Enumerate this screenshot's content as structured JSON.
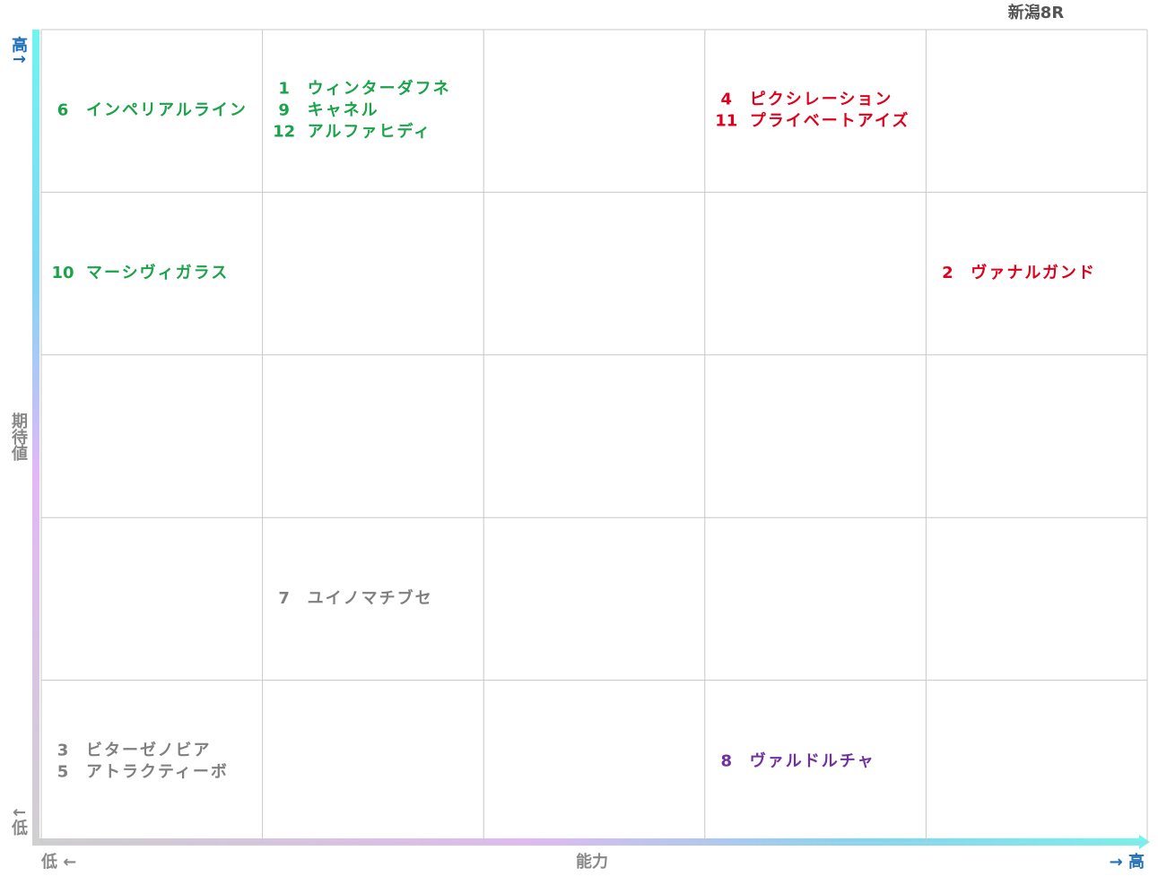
{
  "title": "新潟8R",
  "axes": {
    "y_high": "高↑",
    "y_label": "期待値",
    "y_low": "↓低",
    "x_low": "低 ←",
    "x_label": "能力",
    "x_high": "→ 高"
  },
  "groups": {
    "green": {
      "color": "#1aa34a"
    },
    "red": {
      "color": "#e0001b"
    },
    "gray": {
      "color": "#808080"
    },
    "purple": {
      "color": "#7030a0"
    }
  },
  "grid": {
    "rows": [
      [
        [
          {
            "number": 6,
            "name": "インペリアルライン",
            "group": "green"
          }
        ],
        [
          {
            "number": 1,
            "name": "ウィンターダフネ",
            "group": "green"
          },
          {
            "number": 9,
            "name": "キャネル",
            "group": "green"
          },
          {
            "number": 12,
            "name": "アルファヒディ",
            "group": "green"
          }
        ],
        [],
        [
          {
            "number": 4,
            "name": "ピクシレーション",
            "group": "red"
          },
          {
            "number": 11,
            "name": "プライベートアイズ",
            "group": "red"
          }
        ],
        []
      ],
      [
        [
          {
            "number": 10,
            "name": "マーシヴィガラス",
            "group": "green"
          }
        ],
        [],
        [],
        [],
        [
          {
            "number": 2,
            "name": "ヴァナルガンド",
            "group": "red"
          }
        ]
      ],
      [
        [],
        [],
        [],
        [],
        []
      ],
      [
        [],
        [
          {
            "number": 7,
            "name": "ユイノマチブセ",
            "group": "gray"
          }
        ],
        [],
        [],
        []
      ],
      [
        [
          {
            "number": 3,
            "name": "ビターゼノビア",
            "group": "gray"
          },
          {
            "number": 5,
            "name": "アトラクティーボ",
            "group": "gray"
          }
        ],
        [],
        [],
        [
          {
            "number": 8,
            "name": "ヴァルドルチャ",
            "group": "purple"
          }
        ],
        []
      ]
    ]
  }
}
